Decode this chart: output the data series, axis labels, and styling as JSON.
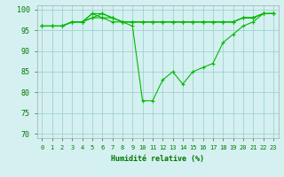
{
  "x": [
    0,
    1,
    2,
    3,
    4,
    5,
    6,
    7,
    8,
    9,
    10,
    11,
    12,
    13,
    14,
    15,
    16,
    17,
    18,
    19,
    20,
    21,
    22,
    23
  ],
  "series": [
    [
      96,
      96,
      96,
      97,
      97,
      99,
      98,
      98,
      97,
      96,
      78,
      78,
      83,
      85,
      82,
      85,
      86,
      87,
      92,
      94,
      96,
      97,
      99,
      99
    ],
    [
      96,
      96,
      96,
      97,
      97,
      98,
      98,
      97,
      97,
      97,
      97,
      97,
      97,
      97,
      97,
      97,
      97,
      97,
      97,
      97,
      98,
      98,
      99,
      99
    ],
    [
      96,
      96,
      96,
      97,
      97,
      99,
      99,
      98,
      97,
      97,
      97,
      97,
      97,
      97,
      97,
      97,
      97,
      97,
      97,
      97,
      98,
      98,
      99,
      99
    ],
    [
      96,
      96,
      96,
      97,
      97,
      98,
      99,
      98,
      97,
      97,
      97,
      97,
      97,
      97,
      97,
      97,
      97,
      97,
      97,
      97,
      98,
      98,
      99,
      99
    ]
  ],
  "line_color": "#00bb00",
  "bg_color": "#d4f0f0",
  "grid_color": "#99cccc",
  "spine_color": "#aaaaaa",
  "ylim": [
    69,
    101
  ],
  "yticks": [
    70,
    75,
    80,
    85,
    90,
    95,
    100
  ],
  "xlim": [
    -0.5,
    23.5
  ],
  "xlabel": "Humidité relative (%)",
  "xlabel_color": "#007700",
  "tick_color": "#007700",
  "tick_fontsize": 5,
  "xlabel_fontsize": 6
}
